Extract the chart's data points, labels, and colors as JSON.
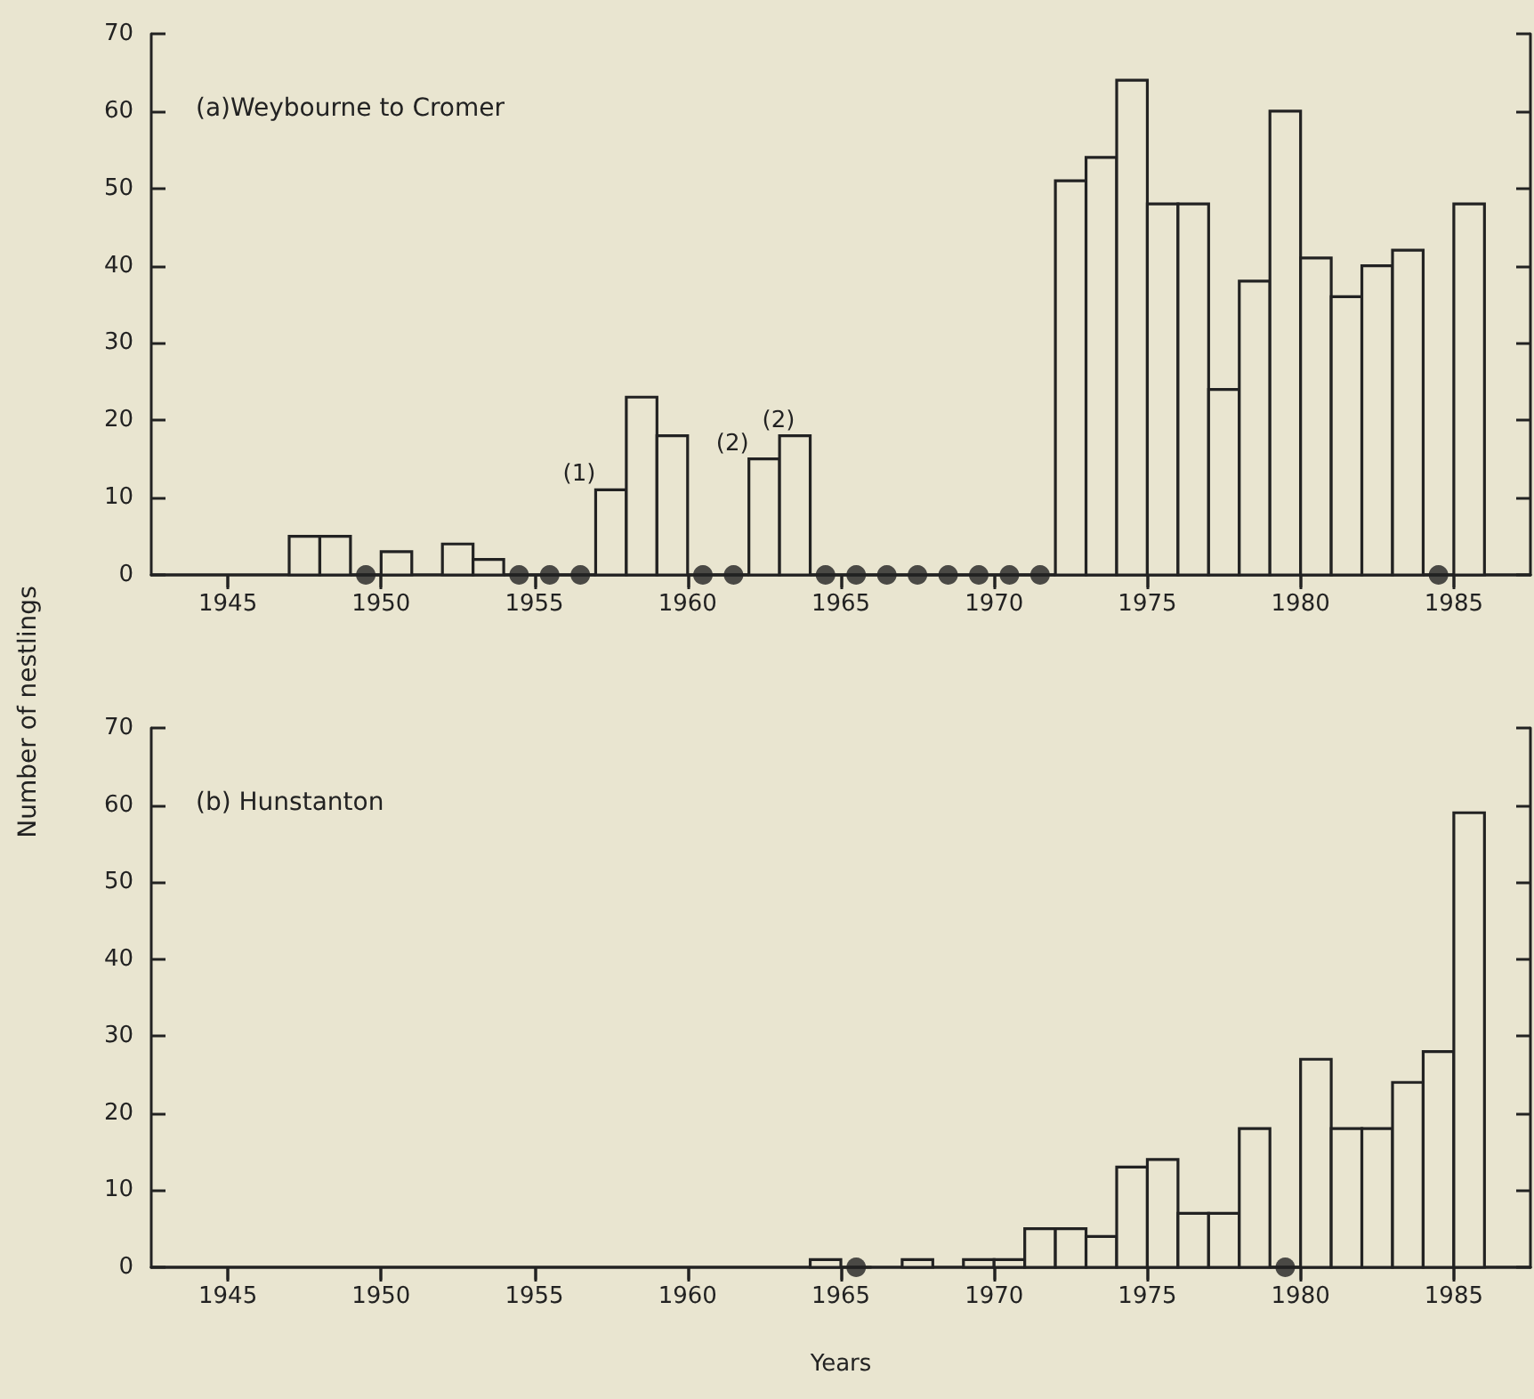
{
  "chart_data": [
    {
      "type": "histogram",
      "title": "(a)Weybourne to Cromer",
      "ylabel": "Number of nestlings",
      "color": "#222222",
      "bins": [
        1947,
        1948,
        1949,
        1950,
        1951,
        1952,
        1953,
        1954,
        1955,
        1956,
        1957,
        1958,
        1959,
        1960,
        1961,
        1962,
        1963,
        1964,
        1965,
        1966,
        1967,
        1968,
        1969,
        1970,
        1971,
        1972,
        1973,
        1974,
        1975,
        1976,
        1977,
        1978,
        1979,
        1980,
        1981,
        1982,
        1983,
        1984,
        1985,
        1986
      ],
      "values": [
        5,
        5,
        0,
        3,
        null,
        4,
        2,
        0,
        0,
        0,
        11,
        23,
        18,
        0,
        0,
        15,
        18,
        0,
        0,
        0,
        0,
        0,
        0,
        0,
        0,
        51,
        54,
        64,
        48,
        48,
        24,
        38,
        60,
        41,
        36,
        40,
        42,
        0,
        48
      ],
      "marker": "circle",
      "series": [
        {
          "type": "scatter",
          "color": "#222222",
          "x": [
            1949.5,
            1954.5,
            1955.5,
            1956.5,
            1960.5,
            1961.5,
            1964.5,
            1965.5,
            1966.5,
            1967.5,
            1968.5,
            1969.5,
            1970.5,
            1971.5,
            1984.5
          ],
          "values": [
            0,
            0,
            0,
            0,
            0,
            0,
            0,
            0,
            0,
            0,
            0,
            0,
            0,
            0,
            0
          ]
        }
      ],
      "annotations": [
        {
          "text": "(1)",
          "x": 1957,
          "y": 11
        },
        {
          "text": "(2)",
          "x": 1962,
          "y": 15
        },
        {
          "text": "(2)",
          "x": 1963.5,
          "y": 18
        }
      ],
      "xlim": [
        1942.5,
        1987.5
      ],
      "xticks": [
        1945,
        1950,
        1955,
        1960,
        1965,
        1970,
        1975,
        1980,
        1985
      ],
      "ylim": [
        0,
        70
      ],
      "yticks": [
        0,
        10,
        20,
        30,
        40,
        50,
        60,
        70
      ]
    },
    {
      "type": "histogram",
      "title": "(b) Hunstanton",
      "xlabel": "Years",
      "color": "#222222",
      "bins": [
        1964,
        1965,
        1966,
        1967,
        1968,
        1969,
        1970,
        1971,
        1972,
        1973,
        1974,
        1975,
        1976,
        1977,
        1978,
        1979,
        1980,
        1981,
        1982,
        1983,
        1984,
        1985,
        1986
      ],
      "values": [
        1,
        0,
        null,
        1,
        null,
        1,
        1,
        5,
        5,
        4,
        13,
        14,
        7,
        7,
        18,
        0,
        27,
        18,
        18,
        24,
        28,
        59
      ],
      "marker": "circle",
      "series": [
        {
          "type": "scatter",
          "color": "#222222",
          "x": [
            1965.5,
            1979.5
          ],
          "values": [
            0,
            0
          ]
        }
      ],
      "xlim": [
        1942.5,
        1987.5
      ],
      "xticks": [
        1945,
        1950,
        1955,
        1960,
        1965,
        1970,
        1975,
        1980,
        1985
      ],
      "ylim": [
        0,
        70
      ],
      "yticks": [
        0,
        10,
        20,
        30,
        40,
        50,
        60,
        70
      ]
    }
  ]
}
